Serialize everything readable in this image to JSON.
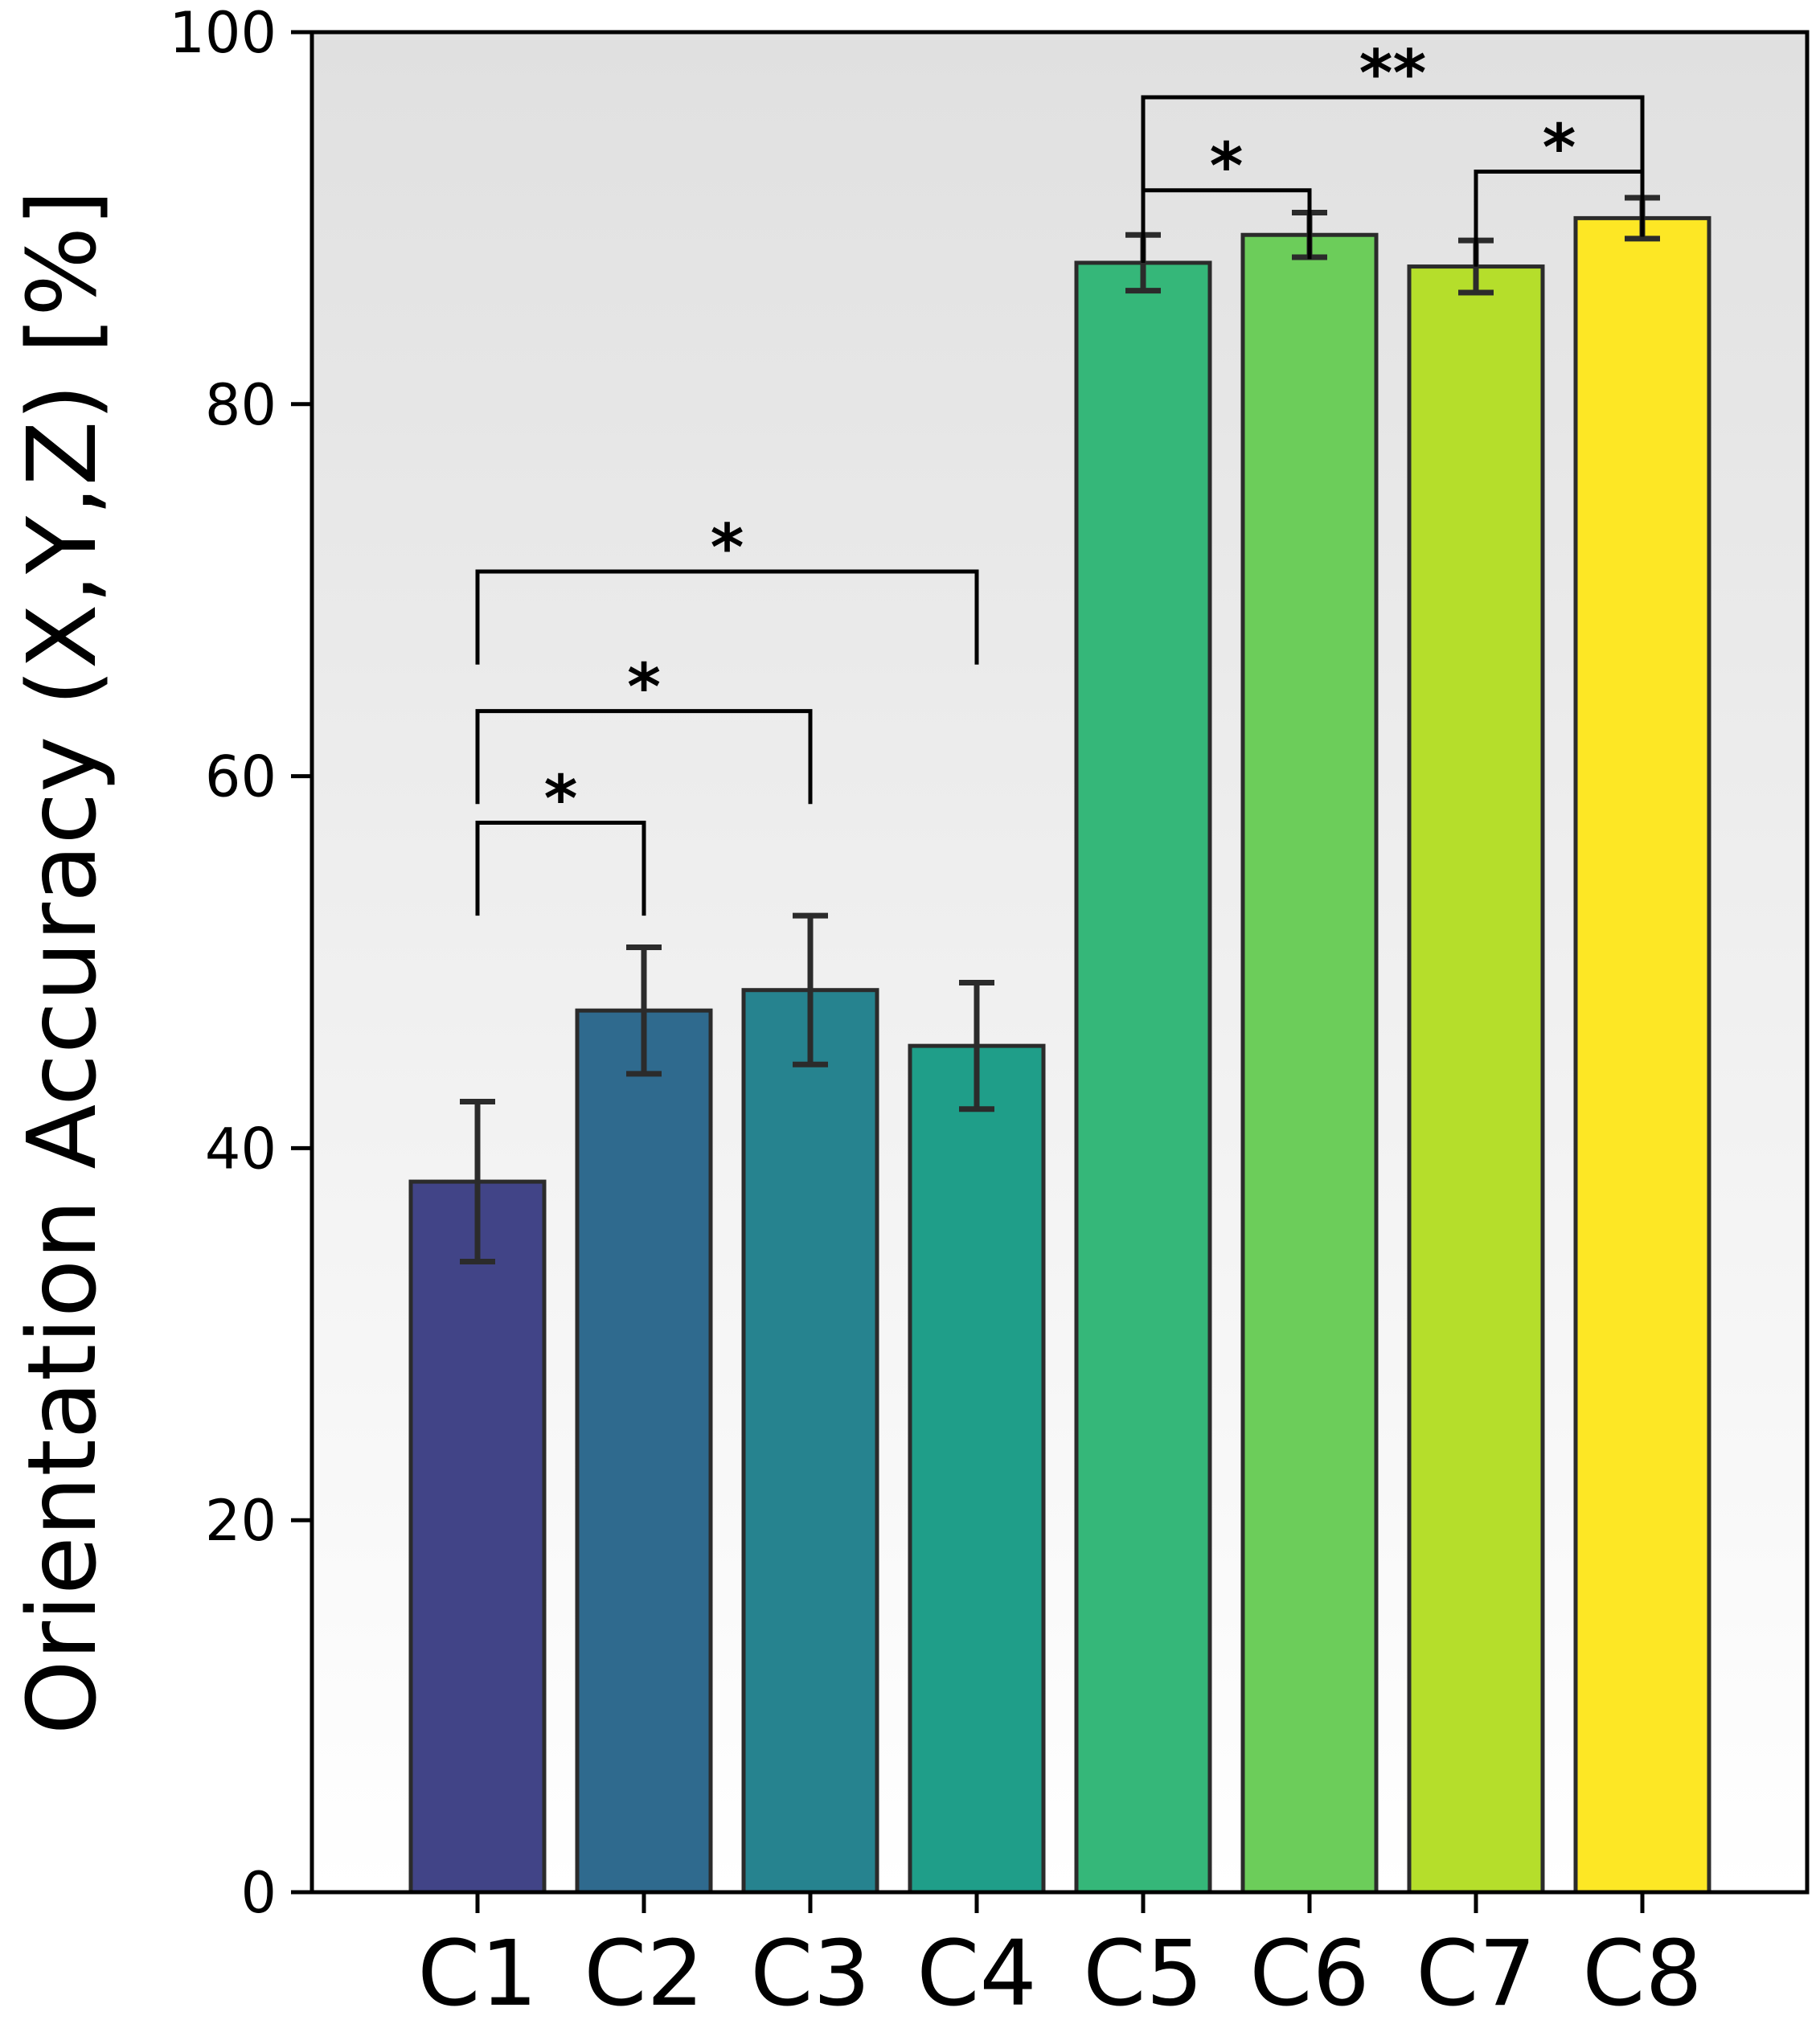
{
  "chart_data": {
    "type": "bar",
    "title": "",
    "xlabel": "",
    "ylabel": "Orientation Accuracy (X,Y,Z) [%]",
    "ylim": [
      0,
      100
    ],
    "yticks": [
      0,
      20,
      40,
      60,
      80,
      100
    ],
    "categories": [
      "C1",
      "C2",
      "C3",
      "C4",
      "C5",
      "C6",
      "C7",
      "C8"
    ],
    "values": [
      38.2,
      47.4,
      48.5,
      45.5,
      87.6,
      89.1,
      87.4,
      90.0
    ],
    "error": [
      4.3,
      3.4,
      4.0,
      3.4,
      1.5,
      1.2,
      1.4,
      1.1
    ],
    "colors": [
      "#414487",
      "#2f6a8e",
      "#26838f",
      "#1f9e89",
      "#35b779",
      "#6ccd5a",
      "#b5de2b",
      "#fde725"
    ],
    "background_gradient": [
      "#e0e0e0",
      "#ffffff"
    ],
    "grid": false,
    "significance": [
      {
        "from": "C1",
        "to": "C2",
        "label": "*",
        "y": 57.5,
        "left_drop": 52.5,
        "right_drop": 52.5
      },
      {
        "from": "C1",
        "to": "C3",
        "label": "*",
        "y": 63.5,
        "left_drop": 58.5,
        "right_drop": 58.5
      },
      {
        "from": "C1",
        "to": "C4",
        "label": "*",
        "y": 71.0,
        "left_drop": 66.0,
        "right_drop": 66.0
      },
      {
        "from": "C5",
        "to": "C6",
        "label": "*",
        "y": 91.5,
        "left_drop": 87.6,
        "right_drop": 87.8
      },
      {
        "from": "C7",
        "to": "C8",
        "label": "*",
        "y": 92.5,
        "left_drop": 87.4,
        "right_drop": 89.0
      },
      {
        "from": "C5",
        "to": "C8",
        "label": "**",
        "y": 96.5,
        "left_drop": 87.6,
        "right_drop": 91.0
      }
    ]
  }
}
